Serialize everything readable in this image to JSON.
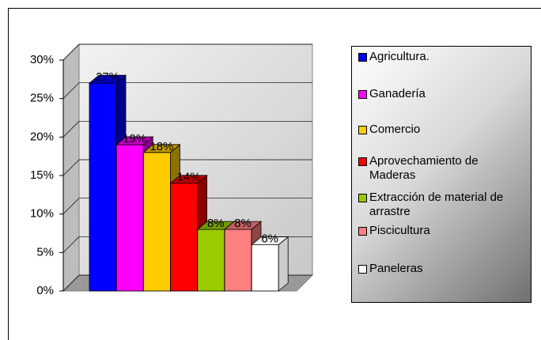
{
  "chart_data": {
    "type": "bar3d",
    "categories": [
      "Agricultura.",
      "Ganadería",
      "Comercio",
      "Aprovechamiento de Maderas",
      "Extracción de material de arrastre",
      "Piscicultura",
      "Paneleras"
    ],
    "values": [
      27,
      19,
      18,
      14,
      8,
      8,
      6
    ],
    "value_labels": [
      "27%",
      "19%",
      "18%",
      "14%",
      "8%",
      "8%",
      "6%"
    ],
    "colors": [
      "#0000ff",
      "#ff00ff",
      "#ffcc00",
      "#ff0000",
      "#99cc00",
      "#ff8080",
      "#ffffff"
    ],
    "ylim": [
      0,
      30
    ],
    "yticks": [
      {
        "value": 0,
        "label": "0%"
      },
      {
        "value": 5,
        "label": "5%"
      },
      {
        "value": 10,
        "label": "10%"
      },
      {
        "value": 15,
        "label": "15%"
      },
      {
        "value": 20,
        "label": "20%"
      },
      {
        "value": 25,
        "label": "25%"
      },
      {
        "value": 30,
        "label": "30%"
      }
    ],
    "grid": true,
    "legend": "right"
  }
}
